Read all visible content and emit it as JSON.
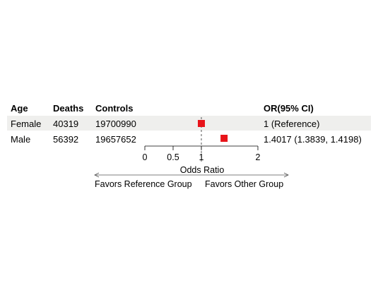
{
  "headers": {
    "age": "Age",
    "deaths": "Deaths",
    "controls": "Controls",
    "or_ci": "OR(95% CI)"
  },
  "rows": [
    {
      "age": "Female",
      "deaths": "40319",
      "controls": "19700990",
      "or_text": "1 (Reference)"
    },
    {
      "age": "Male",
      "deaths": "56392",
      "controls": "19657652",
      "or_text": "1.4017 (1.3839, 1.4198)"
    }
  ],
  "colors": {
    "marker": "#e8141a",
    "row_shade": "#efefed",
    "reference_line": "#555555"
  },
  "chart_data": {
    "type": "scatter",
    "xlabel": "Odds Ratio",
    "xticks": [
      0,
      0.5,
      1,
      2
    ],
    "tick_labels": [
      "0",
      "0.5",
      "1",
      "2"
    ],
    "reference_value": 1,
    "series": [
      {
        "categories": [
          "Female",
          "Male"
        ],
        "values": [
          1,
          1.4017
        ],
        "lower": [
          1,
          1.3839
        ],
        "upper": [
          1,
          1.4198
        ]
      }
    ],
    "favors_left": "Favors Reference Group",
    "favors_right": "Favors Other Group"
  }
}
